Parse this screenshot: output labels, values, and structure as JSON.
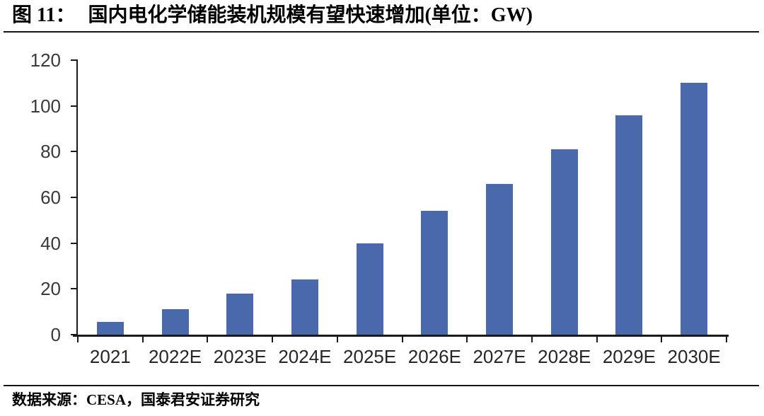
{
  "header": {
    "figure_label": "图 11：",
    "figure_title": "国内电化学储能装机规模有望快速增加(单位：GW)"
  },
  "footer": {
    "source_text": "数据来源：CESA，国泰君安证券研究"
  },
  "chart_data": {
    "type": "bar",
    "title": "国内电化学储能装机规模有望快速增加",
    "unit": "GW",
    "categories": [
      "2021",
      "2022E",
      "2023E",
      "2024E",
      "2025E",
      "2026E",
      "2027E",
      "2028E",
      "2029E",
      "2030E"
    ],
    "values": [
      5.5,
      11,
      18,
      24,
      40,
      54,
      66,
      81,
      96,
      110
    ],
    "xlabel": "",
    "ylabel": "",
    "ylim": [
      0,
      120
    ],
    "yticks": [
      0,
      20,
      40,
      60,
      80,
      100,
      120
    ],
    "grid": false,
    "legend": "none",
    "bar_color": "#4a69ad",
    "axis_color": "#1a1a1a"
  }
}
